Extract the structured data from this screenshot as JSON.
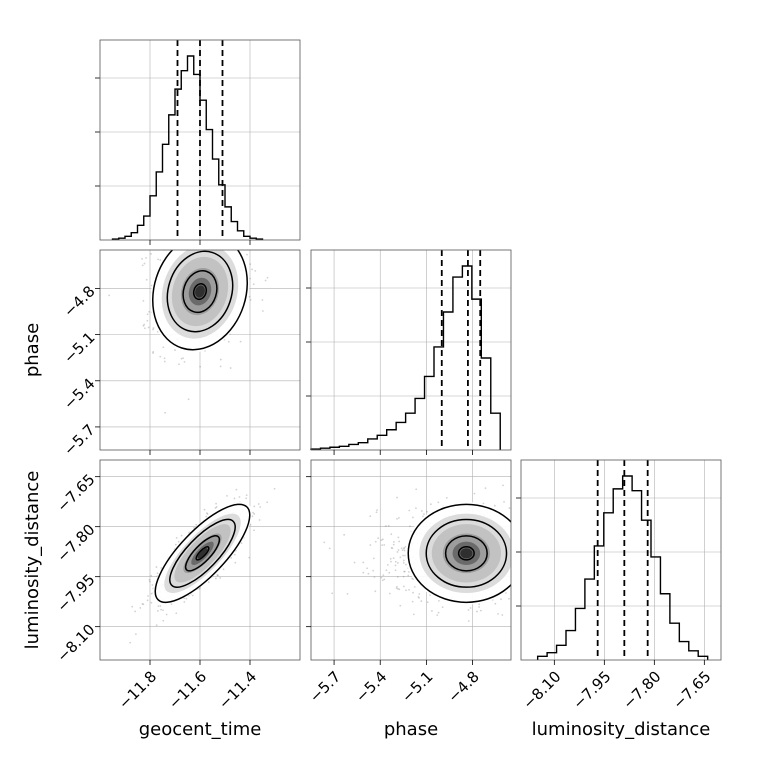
{
  "chart_data": {
    "type": "corner",
    "parameters": [
      "geocent_time",
      "phase",
      "luminosity_distance"
    ],
    "axes": {
      "geocent_time": {
        "range": [
          -12.0,
          -11.2
        ],
        "ticks": [
          -11.8,
          -11.6,
          -11.4
        ],
        "tick_labels": [
          "−11.8",
          "−11.6",
          "−11.4"
        ]
      },
      "phase": {
        "range": [
          -5.85,
          -4.55
        ],
        "ticks": [
          -5.7,
          -5.4,
          -5.1,
          -4.8
        ],
        "tick_labels": [
          "−5.7",
          "−5.4",
          "−5.1",
          "−4.8"
        ]
      },
      "luminosity_distance": {
        "range": [
          -8.2,
          -7.6
        ],
        "ticks": [
          -8.1,
          -7.95,
          -7.8,
          -7.65
        ],
        "tick_labels": [
          "−8.10",
          "−7.95",
          "−7.80",
          "−7.65"
        ]
      }
    },
    "histograms": {
      "geocent_time": {
        "bin_edges_range": [
          -11.95,
          -11.35
        ],
        "counts": [
          0.005,
          0.01,
          0.02,
          0.04,
          0.08,
          0.13,
          0.24,
          0.37,
          0.52,
          0.68,
          0.82,
          0.92,
          1.0,
          0.9,
          0.76,
          0.6,
          0.44,
          0.3,
          0.18,
          0.1,
          0.05,
          0.02,
          0.01,
          0.005
        ],
        "quantile_lines": [
          -11.69,
          -11.6,
          -11.51
        ]
      },
      "phase": {
        "bin_edges_range": [
          -5.85,
          -4.62
        ],
        "counts": [
          0.005,
          0.01,
          0.015,
          0.02,
          0.03,
          0.04,
          0.06,
          0.08,
          0.11,
          0.15,
          0.2,
          0.28,
          0.4,
          0.56,
          0.75,
          0.94,
          1.0,
          0.82,
          0.5,
          0.2
        ],
        "quantile_lines": [
          -5.0,
          -4.83,
          -4.75
        ]
      },
      "luminosity_distance": {
        "bin_edges_range": [
          -8.15,
          -7.64
        ],
        "counts": [
          0.02,
          0.04,
          0.08,
          0.16,
          0.28,
          0.44,
          0.62,
          0.8,
          0.93,
          1.0,
          0.92,
          0.76,
          0.56,
          0.36,
          0.2,
          0.1,
          0.05,
          0.02
        ],
        "quantile_lines": [
          -7.97,
          -7.89,
          -7.82
        ]
      }
    },
    "density_pairs": [
      {
        "x": "geocent_time",
        "y": "phase",
        "center": [
          -11.6,
          -4.82
        ],
        "std": [
          0.09,
          0.18
        ],
        "correlation": 0.15,
        "mode": [
          -11.6,
          -4.8
        ]
      },
      {
        "x": "geocent_time",
        "y": "luminosity_distance",
        "center": [
          -11.59,
          -7.88
        ],
        "std": [
          0.09,
          0.07
        ],
        "correlation": 0.78,
        "mode": [
          -11.61,
          -7.88
        ]
      },
      {
        "x": "phase",
        "y": "luminosity_distance",
        "center": [
          -4.84,
          -7.88
        ],
        "std": [
          0.18,
          0.07
        ],
        "correlation": 0.0,
        "mode": [
          -4.83,
          -7.88
        ]
      }
    ],
    "grid": true,
    "colors": {
      "line": "#000000",
      "grid": "#b0b0b0",
      "points": "#7f7f7f",
      "frame": "#555555"
    }
  }
}
